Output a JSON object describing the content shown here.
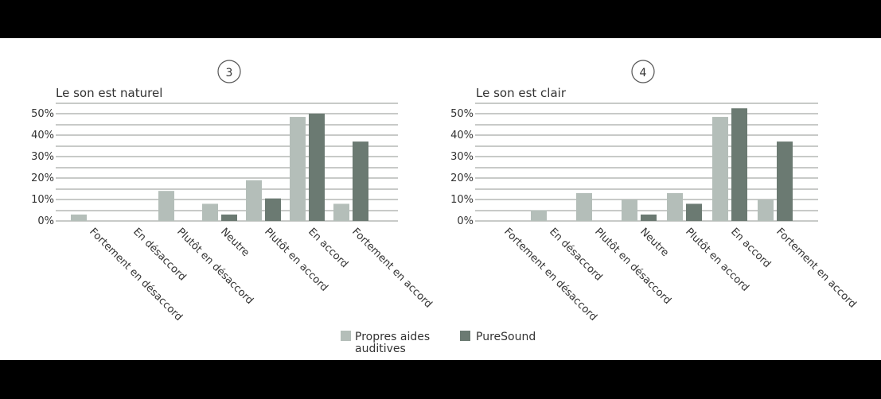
{
  "colors": {
    "own": "#b4beb9",
    "puresound": "#6b7a72",
    "grid": "#a8aaa8"
  },
  "legend": {
    "own_label_line1": "Propres aides",
    "own_label_line2": "auditives",
    "puresound_label": "PureSound"
  },
  "chart_data": [
    {
      "type": "bar",
      "number": "3",
      "title": "Le son est naturel",
      "categories": [
        "Fortement en désaccord",
        "En désaccord",
        "Plutôt en désaccord",
        "Neutre",
        "Plutôt en accord",
        "En accord",
        "Fortement en accord"
      ],
      "yticks": [
        "0%",
        "10%",
        "20%",
        "30%",
        "40%",
        "50%"
      ],
      "ylim": [
        0,
        55
      ],
      "series": [
        {
          "name": "Propres aides auditives",
          "values": [
            3,
            0,
            14,
            8,
            19,
            48.5,
            8
          ]
        },
        {
          "name": "PureSound",
          "values": [
            0,
            0,
            0,
            3,
            10.5,
            50,
            37
          ]
        }
      ]
    },
    {
      "type": "bar",
      "number": "4",
      "title": "Le son est clair",
      "categories": [
        "Fortement en désaccord",
        "En désaccord",
        "Plutôt en désaccord",
        "Neutre",
        "Plutôt en accord",
        "En accord",
        "Fortement en accord"
      ],
      "yticks": [
        "0%",
        "10%",
        "20%",
        "30%",
        "40%",
        "50%"
      ],
      "ylim": [
        0,
        55
      ],
      "series": [
        {
          "name": "Propres aides auditives",
          "values": [
            0,
            5,
            13,
            10,
            13,
            48.5,
            10
          ]
        },
        {
          "name": "PureSound",
          "values": [
            0,
            0,
            0,
            3,
            8,
            52.5,
            37
          ]
        }
      ]
    }
  ]
}
